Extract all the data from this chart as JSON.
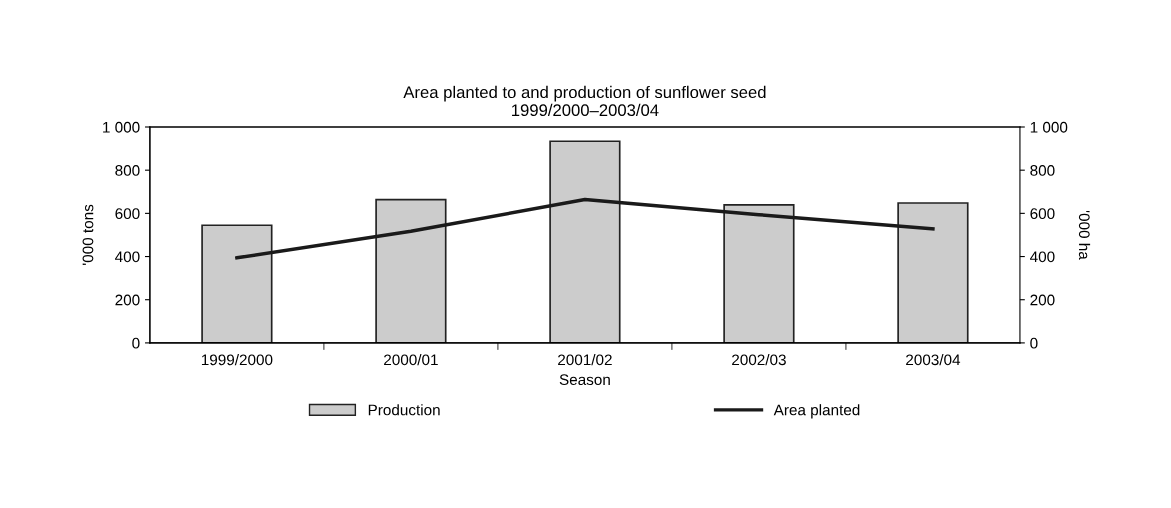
{
  "chart_data": {
    "type": "bar",
    "title": "Area planted to and production of sunflower seed\n1999/2000–2003/04",
    "xlabel": "Season",
    "ylabel": "'000 tons",
    "y2label": "'000 ha",
    "categories": [
      "1999/2000",
      "2000/01",
      "2001/02",
      "2002/03",
      "2003/04"
    ],
    "series": [
      {
        "name": "Production",
        "color": "#cccccc",
        "values": [
          545,
          664,
          934,
          639,
          648
        ]
      },
      {
        "name": "Area planted",
        "type": "line",
        "axis": "y2",
        "color": "#1a1a1a",
        "values": [
          394,
          517,
          664,
          594,
          528
        ]
      }
    ],
    "ylim": [
      0,
      1000
    ],
    "yticks": [
      0,
      200,
      400,
      600,
      {
        "value": 800,
        "label": "800"
      },
      {
        "value": 1000,
        "label": "1 000"
      }
    ],
    "y2lim": [
      0,
      1000
    ],
    "y2ticks": [
      0,
      200,
      400,
      600,
      800,
      {
        "value": 1000,
        "label": "1 000"
      }
    ],
    "grid": false,
    "legend": "bottom",
    "marker": "none"
  }
}
